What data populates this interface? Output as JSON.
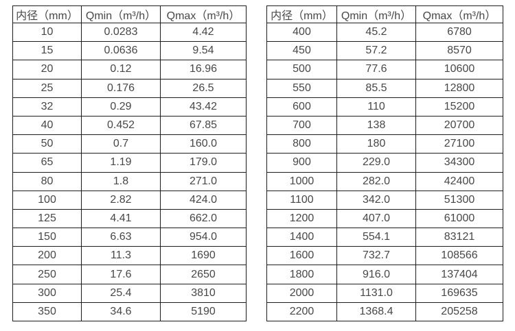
{
  "page": {
    "background_color": "#ffffff",
    "text_color": "#474747",
    "border_color": "#1c1c1c"
  },
  "chart_data": [
    {
      "type": "table",
      "title": "",
      "headers": [
        "内径（mm）",
        "Qmin（m³/h）",
        "Qmax（m³/h）"
      ],
      "rows": [
        [
          "10",
          "0.0283",
          "4.42"
        ],
        [
          "15",
          "0.0636",
          "9.54"
        ],
        [
          "20",
          "0.12",
          "16.96"
        ],
        [
          "25",
          "0.176",
          "26.5"
        ],
        [
          "32",
          "0.29",
          "43.42"
        ],
        [
          "40",
          "0.452",
          "67.85"
        ],
        [
          "50",
          "0.7",
          "160.0"
        ],
        [
          "65",
          "1.19",
          "179.0"
        ],
        [
          "80",
          "1.8",
          "271.0"
        ],
        [
          "100",
          "2.82",
          "424.0"
        ],
        [
          "125",
          "4.41",
          "662.0"
        ],
        [
          "150",
          "6.63",
          "954.0"
        ],
        [
          "200",
          "11.3",
          "1690"
        ],
        [
          "250",
          "17.6",
          "2650"
        ],
        [
          "300",
          "25.4",
          "3810"
        ],
        [
          "350",
          "34.6",
          "5190"
        ]
      ]
    },
    {
      "type": "table",
      "title": "",
      "headers": [
        "内径（mm）",
        "Qmin（m³/h）",
        "Qmax（m³/h）"
      ],
      "rows": [
        [
          "400",
          "45.2",
          "6780"
        ],
        [
          "450",
          "57.2",
          "8570"
        ],
        [
          "500",
          "77.6",
          "10600"
        ],
        [
          "550",
          "85.5",
          "12800"
        ],
        [
          "600",
          "110",
          "15200"
        ],
        [
          "700",
          "138",
          "20700"
        ],
        [
          "800",
          "180",
          "27100"
        ],
        [
          "900",
          "229.0",
          "34300"
        ],
        [
          "1000",
          "282.0",
          "42400"
        ],
        [
          "1100",
          "342.0",
          "51300"
        ],
        [
          "1200",
          "407.0",
          "61000"
        ],
        [
          "1400",
          "554.1",
          "83121"
        ],
        [
          "1600",
          "732.7",
          "108566"
        ],
        [
          "1800",
          "916.0",
          "137404"
        ],
        [
          "2000",
          "1131.0",
          "169635"
        ],
        [
          "2200",
          "1368.4",
          "205258"
        ]
      ]
    }
  ]
}
